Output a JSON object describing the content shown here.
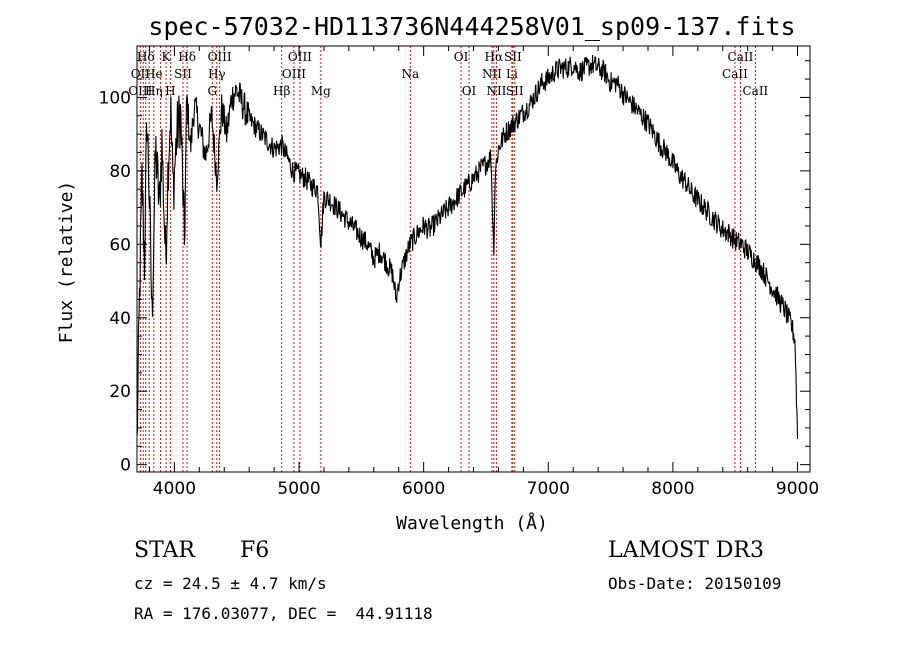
{
  "chart_data": {
    "type": "line",
    "title": "spec-57032-HD113736N444258V01_sp09-137.fits",
    "xlabel": "Wavelength (Å)",
    "ylabel": "Flux (relative)",
    "xlim": [
      3700,
      9100
    ],
    "ylim": [
      -2,
      114
    ],
    "xticks": [
      4000,
      5000,
      6000,
      7000,
      8000,
      9000
    ],
    "yticks": [
      0,
      20,
      40,
      60,
      80,
      100
    ],
    "grid": false,
    "series": [
      {
        "x": [
          3700,
          3720,
          3740,
          3760,
          3780,
          3800,
          3820,
          3850,
          3880,
          3900,
          3930,
          3950,
          3970,
          3990,
          4020,
          4050,
          4080,
          4100,
          4130,
          4160,
          4200,
          4250,
          4300,
          4340,
          4380,
          4420,
          4460,
          4500,
          4550,
          4600,
          4650,
          4700,
          4750,
          4800,
          4861,
          4900,
          4950,
          5000,
          5050,
          5100,
          5150,
          5175,
          5200,
          5250,
          5300,
          5350,
          5400,
          5450,
          5500,
          5550,
          5600,
          5650,
          5700,
          5750,
          5780,
          5800,
          5850,
          5890,
          5950,
          6000,
          6050,
          6100,
          6150,
          6200,
          6250,
          6300,
          6350,
          6400,
          6450,
          6500,
          6540,
          6563,
          6575,
          6600,
          6650,
          6700,
          6750,
          6800,
          6850,
          6900,
          6950,
          7000,
          7050,
          7100,
          7150,
          7200,
          7250,
          7300,
          7350,
          7400,
          7450,
          7500,
          7550,
          7600,
          7650,
          7700,
          7750,
          7800,
          7850,
          7900,
          7950,
          8000,
          8050,
          8100,
          8150,
          8200,
          8250,
          8300,
          8350,
          8400,
          8450,
          8500,
          8550,
          8600,
          8650,
          8700,
          8750,
          8800,
          8850,
          8900,
          8950,
          8980,
          9000
        ],
        "y": [
          5,
          45,
          78,
          55,
          95,
          72,
          40,
          86,
          70,
          88,
          55,
          82,
          97,
          75,
          90,
          96,
          60,
          100,
          86,
          98,
          92,
          84,
          95,
          78,
          97,
          90,
          100,
          102,
          98,
          94,
          92,
          90,
          88,
          86,
          87,
          84,
          80,
          79,
          78,
          76,
          75,
          60,
          73,
          72,
          70,
          68,
          66,
          64,
          62,
          60,
          56,
          58,
          55,
          52,
          45,
          50,
          56,
          60,
          63,
          65,
          64,
          66,
          68,
          70,
          72,
          74,
          76,
          78,
          80,
          82,
          84,
          58,
          80,
          86,
          90,
          92,
          94,
          96,
          98,
          101,
          104,
          105,
          107,
          108,
          108,
          109,
          107,
          108,
          109,
          108,
          107,
          104,
          104,
          101,
          99,
          97,
          95,
          93,
          90,
          87,
          85,
          82,
          79,
          77,
          74,
          72,
          70,
          68,
          66,
          64,
          63,
          61,
          60,
          58,
          56,
          54,
          51,
          48,
          45,
          42,
          38,
          34,
          8
        ]
      }
    ],
    "line_labels": [
      {
        "label": "Hδ",
        "x": 3770,
        "row": 0
      },
      {
        "label": "OII",
        "x": 3727,
        "row": 1
      },
      {
        "label": "OIII",
        "x": 3727,
        "row": 2
      },
      {
        "label": "He",
        "x": 3835,
        "row": 1
      },
      {
        "label": "Hη",
        "x": 3835,
        "row": 2
      },
      {
        "label": "K",
        "x": 3933,
        "row": 0
      },
      {
        "label": "H",
        "x": 3968,
        "row": 2
      },
      {
        "label": "SII",
        "x": 4069,
        "row": 1
      },
      {
        "label": "Hδ",
        "x": 4102,
        "row": 0
      },
      {
        "label": "OIII",
        "x": 4363,
        "row": 0
      },
      {
        "label": "Hγ",
        "x": 4340,
        "row": 1
      },
      {
        "label": "G",
        "x": 4304,
        "row": 2
      },
      {
        "label": "Hβ",
        "x": 4861,
        "row": 2
      },
      {
        "label": "OIII",
        "x": 5007,
        "row": 0
      },
      {
        "label": "OIII",
        "x": 4959,
        "row": 1
      },
      {
        "label": "Mg",
        "x": 5175,
        "row": 2
      },
      {
        "label": "Na",
        "x": 5893,
        "row": 1
      },
      {
        "label": "OI",
        "x": 6300,
        "row": 0
      },
      {
        "label": "OI",
        "x": 6364,
        "row": 2
      },
      {
        "label": "Hα",
        "x": 6563,
        "row": 0
      },
      {
        "label": "SII",
        "x": 6716,
        "row": 0
      },
      {
        "label": "NII",
        "x": 6548,
        "row": 1
      },
      {
        "label": "Li",
        "x": 6708,
        "row": 1
      },
      {
        "label": "NII",
        "x": 6584,
        "row": 2
      },
      {
        "label": "SII",
        "x": 6731,
        "row": 2
      },
      {
        "label": "CaII",
        "x": 8542,
        "row": 0
      },
      {
        "label": "CaII",
        "x": 8498,
        "row": 1
      },
      {
        "label": "CaII",
        "x": 8662,
        "row": 2
      }
    ],
    "line_markers": [
      3727,
      3750,
      3770,
      3798,
      3835,
      3889,
      3933,
      3968,
      4069,
      4102,
      4304,
      4340,
      4363,
      4861,
      4959,
      5007,
      5175,
      5893,
      6300,
      6364,
      6548,
      6563,
      6584,
      6708,
      6716,
      6731,
      8498,
      8542,
      8662
    ]
  },
  "info": {
    "object_class": "STAR",
    "subclass": "F6",
    "survey": "LAMOST DR3",
    "redshift": "cz = 24.5 ± 4.7 km/s",
    "obs_date": "Obs-Date: 20150109",
    "coords": "RA = 176.03077, DEC =  44.91118"
  }
}
